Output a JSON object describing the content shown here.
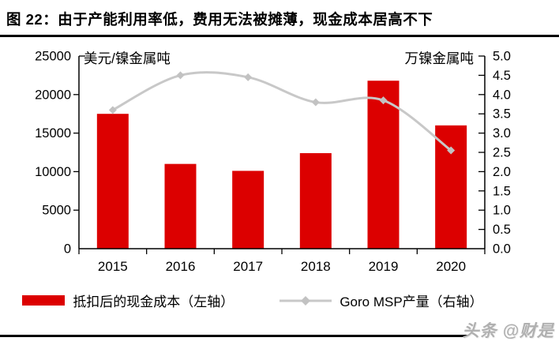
{
  "title": "图 22：由于产能利用率低，费用无法被摊薄，现金成本居高不下",
  "watermark": "头条 @财是",
  "colors": {
    "bar": "#dc0000",
    "line": "#c8c8c8",
    "marker": "#c2c2c2",
    "axis": "#000000",
    "watermark_gray": "#b0b0b0"
  },
  "chart_data": {
    "type": "bar",
    "subtype": "bar+line combo",
    "categories": [
      "2015",
      "2016",
      "2017",
      "2018",
      "2019",
      "2020"
    ],
    "series": [
      {
        "name": "抵扣后的现金成本（左轴）",
        "type": "bar",
        "axis": "left",
        "color": "#dc0000",
        "values": [
          17500,
          11000,
          10100,
          12400,
          21800,
          16000
        ]
      },
      {
        "name": "Goro MSP产量（右轴）",
        "type": "line",
        "axis": "right",
        "color": "#c8c8c8",
        "smooth": true,
        "marker": "diamond",
        "values": [
          3.6,
          4.5,
          4.45,
          3.8,
          3.85,
          2.55
        ]
      }
    ],
    "left_axis": {
      "label": "美元/镍金属吨",
      "min": 0,
      "max": 25000,
      "step": 5000,
      "tick_labels": [
        "0",
        "5000",
        "10000",
        "15000",
        "20000",
        "25000"
      ]
    },
    "right_axis": {
      "label": "万镍金属吨",
      "min": 0,
      "max": 5.0,
      "step": 0.5,
      "tick_labels": [
        "0.0",
        "0.5",
        "1.0",
        "1.5",
        "2.0",
        "2.5",
        "3.0",
        "3.5",
        "4.0",
        "4.5",
        "5.0"
      ]
    },
    "grid": false,
    "legend_position": "bottom"
  }
}
